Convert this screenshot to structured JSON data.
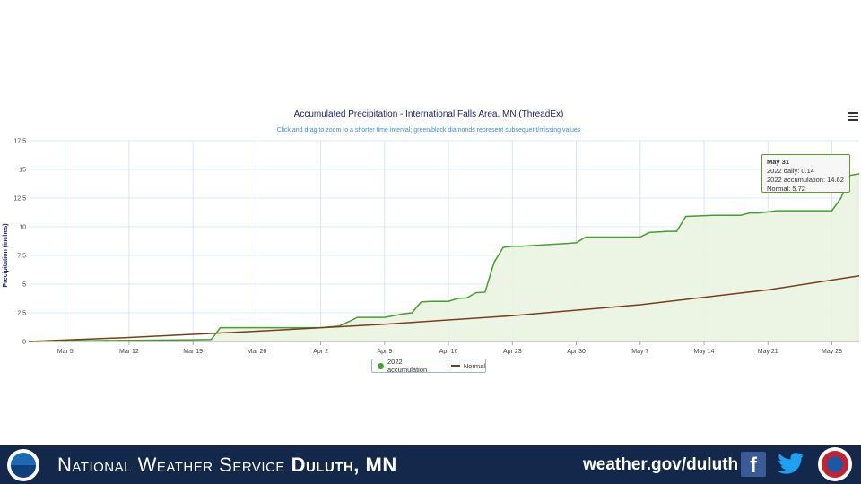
{
  "chart_data": {
    "type": "area",
    "title": "Accumulated Precipitation - International Falls Area, MN (ThreadEx)",
    "subtitle": "Click and drag to zoom to a shorter time interval; green/black diamonds represent subsequent/missing values",
    "ylabel": "Precipitation (inches)",
    "xlabel": "",
    "ylim": [
      0,
      17.5
    ],
    "yticks": [
      "0",
      "2.5",
      "5",
      "7.5",
      "10",
      "12.5",
      "15",
      "17.5"
    ],
    "xtick_labels": [
      "Mar 5",
      "Mar 12",
      "Mar 19",
      "Mar 26",
      "Apr 2",
      "Apr 9",
      "Apr 16",
      "Apr 23",
      "Apr 30",
      "May 7",
      "May 14",
      "May 21",
      "May 28"
    ],
    "x_range": [
      "Mar 1",
      "May 31"
    ],
    "grid": true,
    "legend_position": "bottom-center",
    "series": [
      {
        "name": "2022 accumulation",
        "color": "#43a02c",
        "x": [
          "Mar 1",
          "Mar 5",
          "Mar 12",
          "Mar 19",
          "Mar 21",
          "Mar 22",
          "Mar 26",
          "Apr 2",
          "Apr 4",
          "Apr 5",
          "Apr 6",
          "Apr 9",
          "Apr 11",
          "Apr 12",
          "Apr 13",
          "Apr 14",
          "Apr 16",
          "Apr 17",
          "Apr 18",
          "Apr 19",
          "Apr 20",
          "Apr 21",
          "Apr 22",
          "Apr 23",
          "Apr 24",
          "Apr 30",
          "May 1",
          "May 6",
          "May 7",
          "May 8",
          "May 10",
          "May 11",
          "May 12",
          "May 15",
          "May 16",
          "May 17",
          "May 18",
          "May 19",
          "May 20",
          "May 21",
          "May 22",
          "May 28",
          "May 29",
          "May 30",
          "May 31"
        ],
        "values": [
          0.0,
          0.05,
          0.1,
          0.15,
          0.18,
          1.2,
          1.2,
          1.2,
          1.35,
          1.7,
          2.1,
          2.1,
          2.4,
          2.5,
          3.45,
          3.5,
          3.5,
          3.75,
          3.8,
          4.25,
          4.3,
          6.9,
          8.2,
          8.3,
          8.3,
          8.6,
          9.1,
          9.1,
          9.1,
          9.5,
          9.6,
          9.6,
          10.9,
          11.0,
          11.0,
          11.0,
          11.0,
          11.2,
          11.2,
          11.3,
          11.4,
          11.4,
          12.5,
          14.48,
          14.62
        ]
      },
      {
        "name": "Normal",
        "color": "#7a3d18",
        "x": [
          "Mar 1",
          "Mar 12",
          "Mar 26",
          "Apr 9",
          "Apr 23",
          "May 7",
          "May 21",
          "May 31"
        ],
        "values": [
          0.0,
          0.35,
          0.9,
          1.5,
          2.25,
          3.2,
          4.5,
          5.72
        ]
      }
    ],
    "tooltip": {
      "date": "May 31",
      "daily": "2022 daily: 0.14",
      "accumulation": "2022 accumulation: 14.62",
      "normal": "Normal: 5.72"
    }
  },
  "legend": {
    "item1": "2022 accumulation",
    "item2": "Normal"
  },
  "footer": {
    "org_prefix": "National Weather Service",
    "org_office": "Duluth, MN",
    "url": "weather.gov/duluth",
    "facebook_icon": "facebook-icon",
    "twitter_icon": "twitter-icon",
    "noaa_logo": "noaa-logo",
    "nws_logo": "nws-logo",
    "bg_color": "#13284a"
  }
}
